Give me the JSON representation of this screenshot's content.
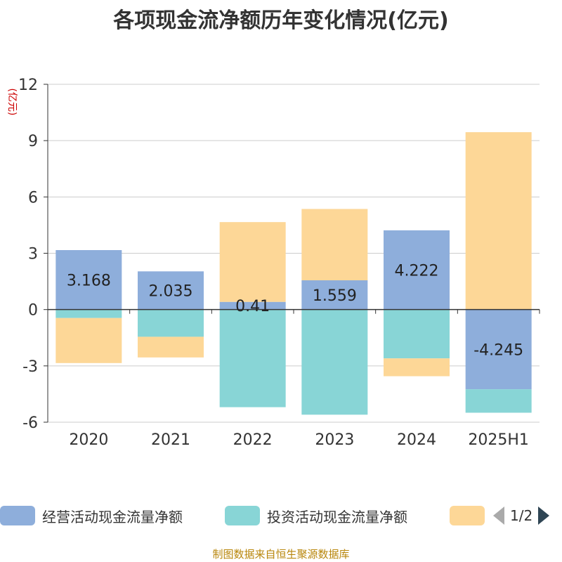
{
  "title": "各项现金流净额历年变化情况(亿元)",
  "source_note": "制图数据来自恒生聚源数据库",
  "legend": {
    "page_indicator": "1/2",
    "prev_icon": "triangle-left-icon",
    "next_icon": "triangle-right-icon"
  },
  "chart_data": {
    "type": "bar",
    "stacked": true,
    "title": "各项现金流净额历年变化情况(亿元)",
    "ylabel": "(亿元)",
    "xlabel": "",
    "categories": [
      "2020",
      "2021",
      "2022",
      "2023",
      "2024",
      "2025H1"
    ],
    "ylim": [
      -6,
      12
    ],
    "yticks": [
      -6,
      -3,
      0,
      3,
      6,
      9,
      12
    ],
    "grid": true,
    "legend_position": "bottom",
    "series": [
      {
        "name": "经营活动现金流量净额",
        "color": "#8eaedb",
        "values": [
          3.168,
          2.035,
          0.41,
          1.559,
          4.222,
          -4.245
        ],
        "data_labels": [
          "3.168",
          "2.035",
          "0.41",
          "1.559",
          "4.222",
          "-4.245"
        ]
      },
      {
        "name": "投资活动现金流量净额",
        "color": "#88d5d6",
        "values": [
          -0.45,
          -1.45,
          -5.2,
          -5.6,
          -2.6,
          -1.25
        ]
      },
      {
        "name": "",
        "color": "#fdd797",
        "values": [
          -2.4,
          -1.1,
          4.25,
          3.8,
          -0.95,
          9.45
        ]
      }
    ]
  }
}
